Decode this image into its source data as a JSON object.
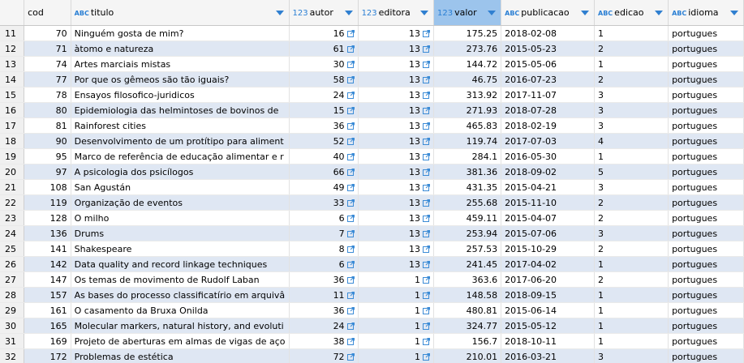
{
  "table": {
    "headers": [
      {
        "badge": null,
        "name": "cod"
      },
      {
        "badge": "ABC",
        "name": "titulo"
      },
      {
        "badge": "123",
        "name": "autor"
      },
      {
        "badge": "123",
        "name": "editora"
      },
      {
        "badge": "123",
        "name": "valor"
      },
      {
        "badge": "ABC",
        "name": "publicacao"
      },
      {
        "badge": "ABC",
        "name": "edicao"
      },
      {
        "badge": "ABC",
        "name": "idioma"
      }
    ],
    "rows": [
      [
        "11",
        "70",
        "Ninguém gosta de mim?",
        "16",
        "13",
        "175.25",
        "2018-02-08",
        "1",
        "portugues"
      ],
      [
        "12",
        "71",
        "àtomo e natureza",
        "61",
        "13",
        "273.76",
        "2015-05-23",
        "2",
        "portugues"
      ],
      [
        "13",
        "74",
        "Artes marciais mistas",
        "30",
        "13",
        "144.72",
        "2015-05-06",
        "1",
        "portugues"
      ],
      [
        "14",
        "77",
        "Por que os gêmeos são tão iguais?",
        "58",
        "13",
        "46.75",
        "2016-07-23",
        "2",
        "portugues"
      ],
      [
        "15",
        "78",
        "Ensayos filosofico-juridicos",
        "24",
        "13",
        "313.92",
        "2017-11-07",
        "3",
        "portugues"
      ],
      [
        "16",
        "80",
        "Epidemiologia das helmintoses de bovinos de",
        "15",
        "13",
        "271.93",
        "2018-07-28",
        "3",
        "portugues"
      ],
      [
        "17",
        "81",
        "Rainforest cities",
        "36",
        "13",
        "465.83",
        "2018-02-19",
        "3",
        "portugues"
      ],
      [
        "18",
        "90",
        "Desenvolvimento de um protítipo para aliment",
        "52",
        "13",
        "119.74",
        "2017-07-03",
        "4",
        "portugues"
      ],
      [
        "19",
        "95",
        "Marco de referência de educação alimentar e r",
        "40",
        "13",
        "284.1",
        "2016-05-30",
        "1",
        "portugues"
      ],
      [
        "20",
        "97",
        "A psicologia dos psicílogos",
        "66",
        "13",
        "381.36",
        "2018-09-02",
        "5",
        "portugues"
      ],
      [
        "21",
        "108",
        "San Agustán",
        "49",
        "13",
        "431.35",
        "2015-04-21",
        "3",
        "portugues"
      ],
      [
        "22",
        "119",
        "Organização de eventos",
        "33",
        "13",
        "255.68",
        "2015-11-10",
        "2",
        "portugues"
      ],
      [
        "23",
        "128",
        "O milho",
        "6",
        "13",
        "459.11",
        "2015-04-07",
        "2",
        "portugues"
      ],
      [
        "24",
        "136",
        "Drums",
        "7",
        "13",
        "253.94",
        "2015-07-06",
        "3",
        "portugues"
      ],
      [
        "25",
        "141",
        "Shakespeare",
        "8",
        "13",
        "257.53",
        "2015-10-29",
        "2",
        "portugues"
      ],
      [
        "26",
        "142",
        "Data quality and record linkage techniques",
        "6",
        "13",
        "241.45",
        "2017-04-02",
        "1",
        "portugues"
      ],
      [
        "27",
        "147",
        "Os temas de movimento de Rudolf Laban",
        "36",
        "1",
        "363.6",
        "2017-06-20",
        "2",
        "portugues"
      ],
      [
        "28",
        "157",
        "As bases do processo classificatírio em arquivâ",
        "11",
        "1",
        "148.58",
        "2018-09-15",
        "1",
        "portugues"
      ],
      [
        "29",
        "161",
        "O casamento da Bruxa Onilda",
        "36",
        "1",
        "480.81",
        "2015-06-14",
        "1",
        "portugues"
      ],
      [
        "30",
        "165",
        "Molecular markers, natural history, and evoluti",
        "24",
        "1",
        "324.77",
        "2015-05-12",
        "1",
        "portugues"
      ],
      [
        "31",
        "169",
        "Projeto de aberturas em almas de vigas de aço",
        "38",
        "1",
        "156.7",
        "2018-10-11",
        "1",
        "portugues"
      ],
      [
        "32",
        "172",
        "Problemas de estética",
        "72",
        "1",
        "210.01",
        "2016-03-21",
        "3",
        "portugues"
      ]
    ]
  }
}
